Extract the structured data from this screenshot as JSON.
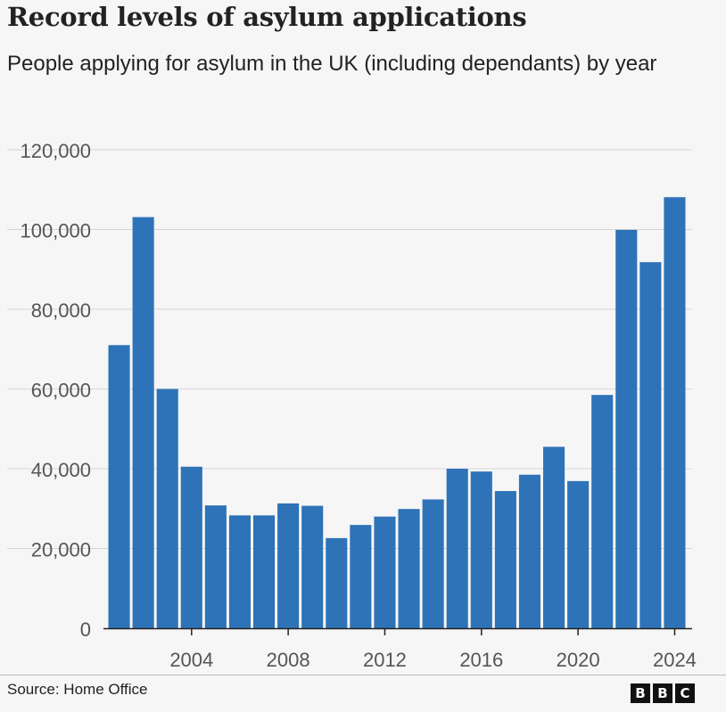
{
  "title": "Record levels of asylum applications",
  "subtitle": "People applying for asylum in the UK (including dependants) by year",
  "source": "Source: Home Office",
  "logo": [
    "B",
    "B",
    "C"
  ],
  "colors": {
    "bar": "#2e73b7",
    "grid": "#d6d6d6",
    "axis": "#222222",
    "text": "#222222"
  },
  "chart_data": {
    "type": "bar",
    "title": "Record levels of asylum applications",
    "subtitle": "People applying for asylum in the UK (including dependants) by year",
    "xlabel": "",
    "ylabel": "",
    "categories": [
      2001,
      2002,
      2003,
      2004,
      2005,
      2006,
      2007,
      2008,
      2009,
      2010,
      2011,
      2012,
      2013,
      2014,
      2015,
      2016,
      2017,
      2018,
      2019,
      2020,
      2021,
      2022,
      2023,
      2024
    ],
    "values": [
      71000,
      103100,
      60000,
      40500,
      30800,
      28300,
      28300,
      31300,
      30700,
      22600,
      25900,
      28000,
      29900,
      32300,
      40000,
      39300,
      34400,
      38500,
      45500,
      36900,
      58500,
      99900,
      91800,
      108100
    ],
    "x_tick_labels": [
      "2004",
      "2008",
      "2012",
      "2016",
      "2020",
      "2024"
    ],
    "y_tick_labels": [
      "0",
      "20,000",
      "40,000",
      "60,000",
      "80,000",
      "100,000",
      "120,000"
    ],
    "ylim": [
      0,
      120000
    ],
    "grid": true,
    "legend": "none"
  }
}
